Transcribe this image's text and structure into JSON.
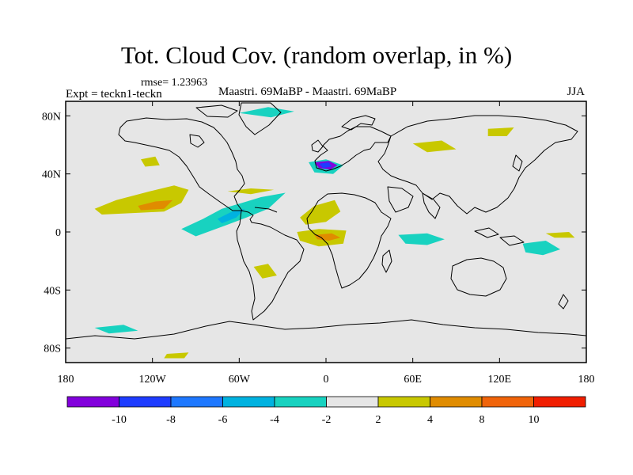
{
  "header": {
    "title": "Tot. Cloud Cov. (random overlap, in %)",
    "rmse": "rmse= 1.23963",
    "experiment": "Expt = teckn1-teckn",
    "cases": "Maastri.  69MaBP - Maastri.  69MaBP",
    "season": "JJA"
  },
  "map": {
    "projection": "cylindrical equidistant",
    "lon_range": [
      -180,
      180
    ],
    "lat_range": [
      -90,
      90
    ],
    "background_color": "#e6e6e6",
    "x_ticks": [
      {
        "lon": -180,
        "label": "180"
      },
      {
        "lon": -120,
        "label": "120W"
      },
      {
        "lon": -60,
        "label": "60W"
      },
      {
        "lon": 0,
        "label": "0"
      },
      {
        "lon": 60,
        "label": "60E"
      },
      {
        "lon": 120,
        "label": "120E"
      },
      {
        "lon": 180,
        "label": "180"
      }
    ],
    "y_ticks": [
      {
        "lat": 80,
        "label": "80N"
      },
      {
        "lat": 40,
        "label": "40N"
      },
      {
        "lat": 0,
        "label": "0"
      },
      {
        "lat": -40,
        "label": "40S"
      },
      {
        "lat": -80,
        "label": "80S"
      }
    ],
    "anomaly_regions": [
      {
        "name": "central-pacific-positive",
        "color": "#c8c800",
        "lonlat": [
          [
            -160,
            16
          ],
          [
            -145,
            22
          ],
          [
            -122,
            28
          ],
          [
            -105,
            32
          ],
          [
            -95,
            29
          ],
          [
            -100,
            20
          ],
          [
            -112,
            14
          ],
          [
            -135,
            13
          ],
          [
            -155,
            12
          ]
        ]
      },
      {
        "name": "central-pacific-core",
        "color": "#e08c00",
        "lonlat": [
          [
            -130,
            18
          ],
          [
            -118,
            21
          ],
          [
            -106,
            22
          ],
          [
            -112,
            16
          ],
          [
            -128,
            15
          ]
        ]
      },
      {
        "name": "tropical-atlantic-negative",
        "color": "#18d2c0",
        "lonlat": [
          [
            -100,
            2
          ],
          [
            -85,
            9
          ],
          [
            -72,
            16
          ],
          [
            -58,
            20
          ],
          [
            -45,
            24
          ],
          [
            -28,
            27
          ],
          [
            -40,
            16
          ],
          [
            -55,
            10
          ],
          [
            -68,
            5
          ],
          [
            -90,
            -3
          ]
        ]
      },
      {
        "name": "tropical-atlantic-strong",
        "color": "#00b2e0",
        "lonlat": [
          [
            -75,
            9
          ],
          [
            -65,
            14
          ],
          [
            -56,
            16
          ],
          [
            -62,
            10
          ],
          [
            -72,
            6
          ]
        ]
      },
      {
        "name": "north-atlantic-positive",
        "color": "#c8c800",
        "lonlat": [
          [
            -68,
            28
          ],
          [
            -52,
            30
          ],
          [
            -36,
            29
          ],
          [
            -52,
            26
          ]
        ]
      },
      {
        "name": "mediterranean-negative",
        "color": "#18d2c0",
        "lonlat": [
          [
            -12,
            48
          ],
          [
            0,
            50
          ],
          [
            12,
            46
          ],
          [
            5,
            40
          ],
          [
            -8,
            41
          ]
        ]
      },
      {
        "name": "mediterranean-strong",
        "color": "#8200dc",
        "lonlat": [
          [
            -8,
            48
          ],
          [
            2,
            49
          ],
          [
            8,
            46
          ],
          [
            3,
            43
          ],
          [
            -5,
            44
          ]
        ]
      },
      {
        "name": "mediterranean-core",
        "color": "#1e3cff",
        "lonlat": [
          [
            -5,
            47
          ],
          [
            2,
            48
          ],
          [
            4,
            45
          ],
          [
            -2,
            44
          ]
        ]
      },
      {
        "name": "north-africa-positive",
        "color": "#c8c800",
        "lonlat": [
          [
            -18,
            10
          ],
          [
            -8,
            18
          ],
          [
            6,
            22
          ],
          [
            10,
            14
          ],
          [
            0,
            7
          ],
          [
            -14,
            5
          ]
        ]
      },
      {
        "name": "equatorial-africa-positive",
        "color": "#c8c800",
        "lonlat": [
          [
            -20,
            0
          ],
          [
            -5,
            2
          ],
          [
            14,
            1
          ],
          [
            12,
            -8
          ],
          [
            -5,
            -10
          ],
          [
            -18,
            -6
          ]
        ]
      },
      {
        "name": "equatorial-africa-core",
        "color": "#e08c00",
        "lonlat": [
          [
            -8,
            -2
          ],
          [
            4,
            -1
          ],
          [
            10,
            -4
          ],
          [
            2,
            -6
          ],
          [
            -6,
            -5
          ]
        ]
      },
      {
        "name": "south-atlantic-positive",
        "color": "#c8c800",
        "lonlat": [
          [
            -50,
            -24
          ],
          [
            -40,
            -22
          ],
          [
            -34,
            -30
          ],
          [
            -44,
            -32
          ]
        ]
      },
      {
        "name": "indian-ocean-negative",
        "color": "#18d2c0",
        "lonlat": [
          [
            50,
            -2
          ],
          [
            70,
            -1
          ],
          [
            82,
            -5
          ],
          [
            70,
            -9
          ],
          [
            55,
            -8
          ]
        ]
      },
      {
        "name": "west-pacific-negative",
        "color": "#18d2c0",
        "lonlat": [
          [
            136,
            -8
          ],
          [
            152,
            -6
          ],
          [
            162,
            -12
          ],
          [
            150,
            -16
          ],
          [
            138,
            -14
          ]
        ]
      },
      {
        "name": "west-pacific-positive",
        "color": "#c8c800",
        "lonlat": [
          [
            152,
            -1
          ],
          [
            168,
            0
          ],
          [
            172,
            -4
          ],
          [
            158,
            -4
          ]
        ]
      },
      {
        "name": "east-asia-positive",
        "color": "#c8c800",
        "lonlat": [
          [
            60,
            61
          ],
          [
            80,
            63
          ],
          [
            90,
            57
          ],
          [
            70,
            55
          ]
        ]
      },
      {
        "name": "siberia-positive",
        "color": "#c8c800",
        "lonlat": [
          [
            112,
            71
          ],
          [
            130,
            72
          ],
          [
            125,
            66
          ],
          [
            112,
            66
          ]
        ]
      },
      {
        "name": "arctic-negative",
        "color": "#18d2c0",
        "lonlat": [
          [
            -60,
            82
          ],
          [
            -40,
            86
          ],
          [
            -22,
            83
          ],
          [
            -38,
            79
          ]
        ]
      },
      {
        "name": "north-pacific-positive",
        "color": "#c8c800",
        "lonlat": [
          [
            -128,
            50
          ],
          [
            -118,
            52
          ],
          [
            -115,
            46
          ],
          [
            -125,
            45
          ]
        ]
      },
      {
        "name": "southern-ocean-negative",
        "color": "#18d2c0",
        "lonlat": [
          [
            -160,
            -66
          ],
          [
            -140,
            -64
          ],
          [
            -130,
            -68
          ],
          [
            -150,
            -70
          ]
        ]
      },
      {
        "name": "southern-ocean-positive",
        "color": "#c8c800",
        "lonlat": [
          [
            -110,
            -84
          ],
          [
            -95,
            -83
          ],
          [
            -98,
            -87
          ],
          [
            -112,
            -87
          ]
        ]
      }
    ]
  },
  "colorbar": {
    "colors": [
      "#8200dc",
      "#1e3cff",
      "#1e78ff",
      "#00b2e0",
      "#18d2c0",
      "#e6e6e6",
      "#c8c800",
      "#e08c00",
      "#f0640a",
      "#f01e00"
    ],
    "labels": [
      "-10",
      "-8",
      "-6",
      "-4",
      "-2",
      "2",
      "4",
      "8",
      "10"
    ]
  }
}
